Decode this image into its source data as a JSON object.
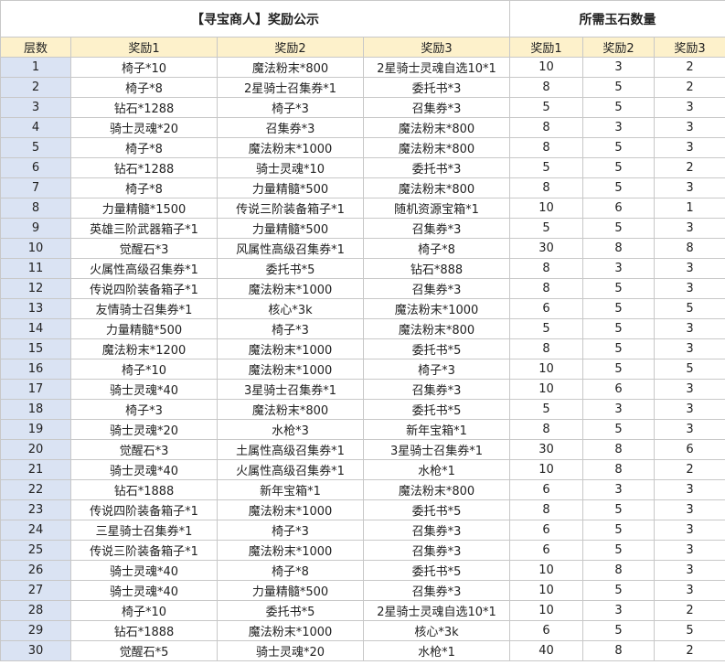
{
  "header": {
    "title": "【寻宝商人】奖励公示",
    "group": "所需玉石数量"
  },
  "table": {
    "columns": [
      "层数",
      "奖励1",
      "奖励2",
      "奖励3",
      "奖励1",
      "奖励2",
      "奖励3"
    ],
    "rows": [
      [
        1,
        "椅子*10",
        "魔法粉末*800",
        "2星骑士灵魂自选10*1",
        10,
        3,
        2
      ],
      [
        2,
        "椅子*8",
        "2星骑士召集券*1",
        "委托书*3",
        8,
        5,
        2
      ],
      [
        3,
        "钻石*1288",
        "椅子*3",
        "召集券*3",
        5,
        5,
        3
      ],
      [
        4,
        "骑士灵魂*20",
        "召集券*3",
        "魔法粉末*800",
        8,
        3,
        3
      ],
      [
        5,
        "椅子*8",
        "魔法粉末*1000",
        "魔法粉末*800",
        8,
        5,
        3
      ],
      [
        6,
        "钻石*1288",
        "骑士灵魂*10",
        "委托书*3",
        5,
        5,
        2
      ],
      [
        7,
        "椅子*8",
        "力量精髓*500",
        "魔法粉末*800",
        8,
        5,
        3
      ],
      [
        8,
        "力量精髓*1500",
        "传说三阶装备箱子*1",
        "随机资源宝箱*1",
        10,
        6,
        1
      ],
      [
        9,
        "英雄三阶武器箱子*1",
        "力量精髓*500",
        "召集券*3",
        5,
        5,
        3
      ],
      [
        10,
        "觉醒石*3",
        "风属性高级召集券*1",
        "椅子*8",
        30,
        8,
        8
      ],
      [
        11,
        "火属性高级召集券*1",
        "委托书*5",
        "钻石*888",
        8,
        3,
        3
      ],
      [
        12,
        "传说四阶装备箱子*1",
        "魔法粉末*1000",
        "召集券*3",
        8,
        5,
        3
      ],
      [
        13,
        "友情骑士召集券*1",
        "核心*3k",
        "魔法粉末*1000",
        6,
        5,
        5
      ],
      [
        14,
        "力量精髓*500",
        "椅子*3",
        "魔法粉末*800",
        5,
        5,
        3
      ],
      [
        15,
        "魔法粉末*1200",
        "魔法粉末*1000",
        "委托书*5",
        8,
        5,
        3
      ],
      [
        16,
        "椅子*10",
        "魔法粉末*1000",
        "椅子*3",
        10,
        5,
        5
      ],
      [
        17,
        "骑士灵魂*40",
        "3星骑士召集券*1",
        "召集券*3",
        10,
        6,
        3
      ],
      [
        18,
        "椅子*3",
        "魔法粉末*800",
        "委托书*5",
        5,
        3,
        3
      ],
      [
        19,
        "骑士灵魂*20",
        "水枪*3",
        "新年宝箱*1",
        8,
        5,
        3
      ],
      [
        20,
        "觉醒石*3",
        "土属性高级召集券*1",
        "3星骑士召集券*1",
        30,
        8,
        6
      ],
      [
        21,
        "骑士灵魂*40",
        "火属性高级召集券*1",
        "水枪*1",
        10,
        8,
        2
      ],
      [
        22,
        "钻石*1888",
        "新年宝箱*1",
        "魔法粉末*800",
        6,
        3,
        3
      ],
      [
        23,
        "传说四阶装备箱子*1",
        "魔法粉末*1000",
        "委托书*5",
        8,
        5,
        3
      ],
      [
        24,
        "三星骑士召集券*1",
        "椅子*3",
        "召集券*3",
        6,
        5,
        3
      ],
      [
        25,
        "传说三阶装备箱子*1",
        "魔法粉末*1000",
        "召集券*3",
        6,
        5,
        3
      ],
      [
        26,
        "骑士灵魂*40",
        "椅子*8",
        "委托书*5",
        10,
        8,
        3
      ],
      [
        27,
        "骑士灵魂*40",
        "力量精髓*500",
        "召集券*3",
        10,
        5,
        3
      ],
      [
        28,
        "椅子*10",
        "委托书*5",
        "2星骑士灵魂自选10*1",
        10,
        3,
        2
      ],
      [
        29,
        "钻石*1888",
        "魔法粉末*1000",
        "核心*3k",
        6,
        5,
        5
      ],
      [
        30,
        "觉醒石*5",
        "骑士灵魂*20",
        "水枪*1",
        40,
        8,
        2
      ]
    ]
  }
}
